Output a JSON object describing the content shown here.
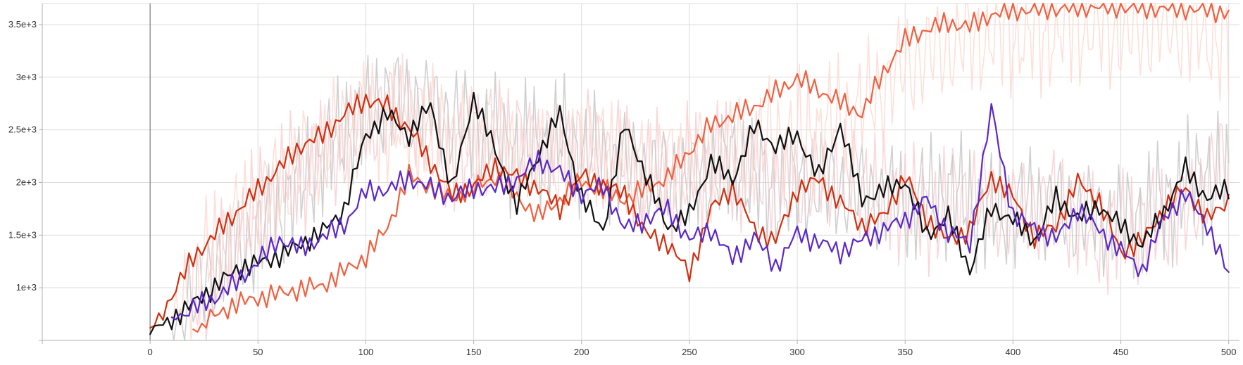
{
  "chart_data": {
    "type": "line",
    "title": "",
    "xlabel": "",
    "ylabel": "",
    "xlim": [
      -50,
      505
    ],
    "ylim": [
      500,
      3700
    ],
    "grid": true,
    "legend": "none",
    "x_ticks": [
      {
        "value": 0,
        "label": "0"
      },
      {
        "value": 50,
        "label": "50"
      },
      {
        "value": 100,
        "label": "100"
      },
      {
        "value": 150,
        "label": "150"
      },
      {
        "value": 200,
        "label": "200"
      },
      {
        "value": 250,
        "label": "250"
      },
      {
        "value": 300,
        "label": "300"
      },
      {
        "value": 350,
        "label": "350"
      },
      {
        "value": 400,
        "label": "400"
      },
      {
        "value": 450,
        "label": "450"
      },
      {
        "value": 500,
        "label": "500"
      }
    ],
    "y_ticks": [
      {
        "value": 1000,
        "label": "1e+3"
      },
      {
        "value": 1500,
        "label": "1.5e+3"
      },
      {
        "value": 2000,
        "label": "2e+3"
      },
      {
        "value": 2500,
        "label": "2.5e+3"
      },
      {
        "value": 3000,
        "label": "3e+3"
      },
      {
        "value": 3500,
        "label": "3.5e+3"
      }
    ],
    "series": [
      {
        "color": "#f8c8cf",
        "opacity": 0.75,
        "x": [
          20,
          40,
          60,
          80,
          100,
          120,
          140,
          160,
          180,
          200,
          220,
          240,
          260,
          280,
          300,
          320,
          340,
          360,
          380,
          400,
          420,
          440,
          460,
          480,
          500
        ],
        "y": [
          700,
          1500,
          2000,
          2200,
          2600,
          2700,
          2200,
          2500,
          2300,
          2400,
          2200,
          2000,
          2200,
          2100,
          2000,
          2100,
          1900,
          1700,
          1900,
          1700,
          1800,
          1500,
          1600,
          1700,
          2300
        ]
      },
      {
        "color": "#c8c8c8",
        "opacity": 0.85,
        "x": [
          10,
          30,
          50,
          70,
          90,
          110,
          130,
          150,
          170,
          190,
          210,
          230,
          250,
          270,
          290,
          310,
          330,
          350,
          370,
          390,
          410,
          430,
          450,
          470,
          490,
          500
        ],
        "y": [
          600,
          1200,
          1500,
          2000,
          2500,
          2800,
          2700,
          2500,
          2300,
          2400,
          2200,
          2100,
          2000,
          2200,
          1900,
          2000,
          1900,
          1800,
          1900,
          1700,
          1800,
          1700,
          1600,
          1800,
          2100,
          2000
        ]
      },
      {
        "color": "#fcd8cf",
        "opacity": 0.8,
        "x": [
          10,
          30,
          50,
          70,
          90,
          110,
          130,
          150,
          170,
          190,
          210,
          230,
          250,
          270,
          290,
          310,
          330,
          350,
          370,
          390,
          410,
          430,
          450,
          470,
          490,
          500
        ],
        "y": [
          700,
          1400,
          1800,
          2200,
          2500,
          2600,
          2500,
          2400,
          2300,
          2200,
          2300,
          2100,
          2200,
          2300,
          2400,
          2500,
          2700,
          3100,
          3300,
          3400,
          3400,
          3500,
          3400,
          3500,
          3400,
          3300
        ]
      },
      {
        "color": "#f06040",
        "opacity": 1,
        "x": [
          20,
          40,
          60,
          80,
          100,
          110,
          120,
          140,
          160,
          180,
          200,
          220,
          240,
          260,
          280,
          300,
          310,
          320,
          330,
          340,
          350,
          360,
          370,
          380,
          390,
          400,
          420,
          440,
          460,
          480,
          500
        ],
        "y": [
          580,
          800,
          900,
          1000,
          1300,
          1600,
          2100,
          1900,
          2100,
          1700,
          2000,
          1800,
          2000,
          2500,
          2700,
          3000,
          2900,
          2800,
          2700,
          3100,
          3400,
          3500,
          3550,
          3500,
          3600,
          3620,
          3610,
          3620,
          3610,
          3630,
          3630
        ]
      },
      {
        "color": "#d03010",
        "opacity": 1,
        "x": [
          0,
          20,
          30,
          40,
          50,
          60,
          70,
          80,
          90,
          100,
          110,
          120,
          130,
          140,
          150,
          160,
          170,
          180,
          190,
          200,
          210,
          220,
          230,
          240,
          250,
          260,
          270,
          280,
          290,
          300,
          310,
          320,
          330,
          340,
          350,
          360,
          370,
          380,
          390,
          400,
          410,
          420,
          430,
          440,
          450,
          460,
          470,
          480,
          490,
          500
        ],
        "y": [
          600,
          1300,
          1500,
          1700,
          1900,
          2100,
          2300,
          2400,
          2600,
          2750,
          2700,
          2500,
          2200,
          1900,
          2000,
          2200,
          2100,
          2000,
          1800,
          2100,
          2000,
          1900,
          1500,
          1400,
          1100,
          1700,
          1900,
          1500,
          1400,
          1900,
          2000,
          1800,
          1600,
          1700,
          2100,
          1700,
          1500,
          1600,
          2100,
          1900,
          1500,
          1600,
          2000,
          1800,
          1300,
          1400,
          1700,
          1900,
          1600,
          1800
        ]
      },
      {
        "color": "#101010",
        "opacity": 1,
        "x": [
          0,
          20,
          40,
          60,
          80,
          90,
          100,
          110,
          120,
          130,
          140,
          150,
          160,
          170,
          180,
          190,
          200,
          210,
          220,
          230,
          240,
          250,
          260,
          270,
          280,
          290,
          300,
          310,
          320,
          330,
          340,
          350,
          360,
          370,
          380,
          390,
          400,
          410,
          420,
          430,
          440,
          450,
          460,
          470,
          480,
          490,
          500
        ],
        "y": [
          600,
          900,
          1200,
          1300,
          1500,
          1700,
          2400,
          2600,
          2400,
          2700,
          1900,
          2800,
          2300,
          1800,
          2300,
          2700,
          1900,
          1600,
          2600,
          2100,
          1600,
          1700,
          2200,
          2000,
          2500,
          2300,
          2400,
          2000,
          2500,
          1800,
          1900,
          2000,
          1500,
          1700,
          1200,
          1800,
          1700,
          1500,
          1900,
          1700,
          1800,
          1600,
          1400,
          1700,
          2100,
          1800,
          1900
        ]
      },
      {
        "color": "#5a28c8",
        "opacity": 1,
        "x": [
          10,
          20,
          30,
          40,
          50,
          60,
          70,
          80,
          90,
          100,
          110,
          120,
          130,
          140,
          150,
          160,
          170,
          180,
          190,
          200,
          210,
          220,
          230,
          240,
          250,
          260,
          270,
          280,
          290,
          300,
          310,
          320,
          330,
          340,
          350,
          360,
          370,
          380,
          390,
          400,
          410,
          420,
          430,
          440,
          450,
          460,
          470,
          480,
          490,
          500
        ],
        "y": [
          700,
          850,
          950,
          1100,
          1300,
          1500,
          1400,
          1500,
          1600,
          1900,
          1900,
          2000,
          1900,
          1800,
          1900,
          1900,
          2000,
          2200,
          2100,
          1900,
          2000,
          1600,
          1700,
          1800,
          1500,
          1600,
          1300,
          1500,
          1200,
          1500,
          1400,
          1300,
          1400,
          1500,
          1600,
          1800,
          1500,
          1400,
          2700,
          1700,
          1600,
          1500,
          1800,
          1600,
          1400,
          1200,
          1700,
          1900,
          1600,
          1100
        ]
      }
    ]
  }
}
